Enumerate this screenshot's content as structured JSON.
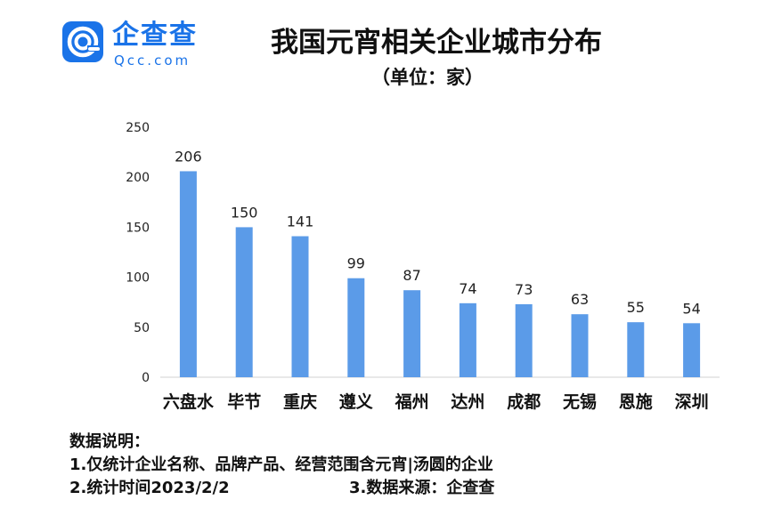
{
  "logo": {
    "name": "企查查",
    "domain": "Qcc.com"
  },
  "header": {
    "title": "我国元宵相关企业城市分布",
    "subtitle": "（单位：家）"
  },
  "colors": {
    "bar": "#5b9be8",
    "brand": "#1a73e8",
    "axis": "#d0d0d0",
    "text": "#111111"
  },
  "chart_data": {
    "type": "bar",
    "title": "我国元宵相关企业城市分布",
    "subtitle": "（单位：家）",
    "xlabel": "",
    "ylabel": "",
    "categories": [
      "六盘水",
      "毕节",
      "重庆",
      "遵义",
      "福州",
      "达州",
      "成都",
      "无锡",
      "恩施",
      "深圳"
    ],
    "values": [
      206,
      150,
      141,
      99,
      87,
      74,
      73,
      63,
      55,
      54
    ],
    "ylim": [
      0,
      250
    ],
    "yticks": [
      0,
      50,
      100,
      150,
      200,
      250
    ],
    "grid": false,
    "legend": "none",
    "data_labels": true
  },
  "notes": {
    "heading": "数据说明：",
    "line1": "1.仅统计企业名称、品牌产品、经营范围含元宵|汤圆的企业",
    "line2": "2.统计时间2023/2/2",
    "source": "3.数据来源：企查查"
  }
}
